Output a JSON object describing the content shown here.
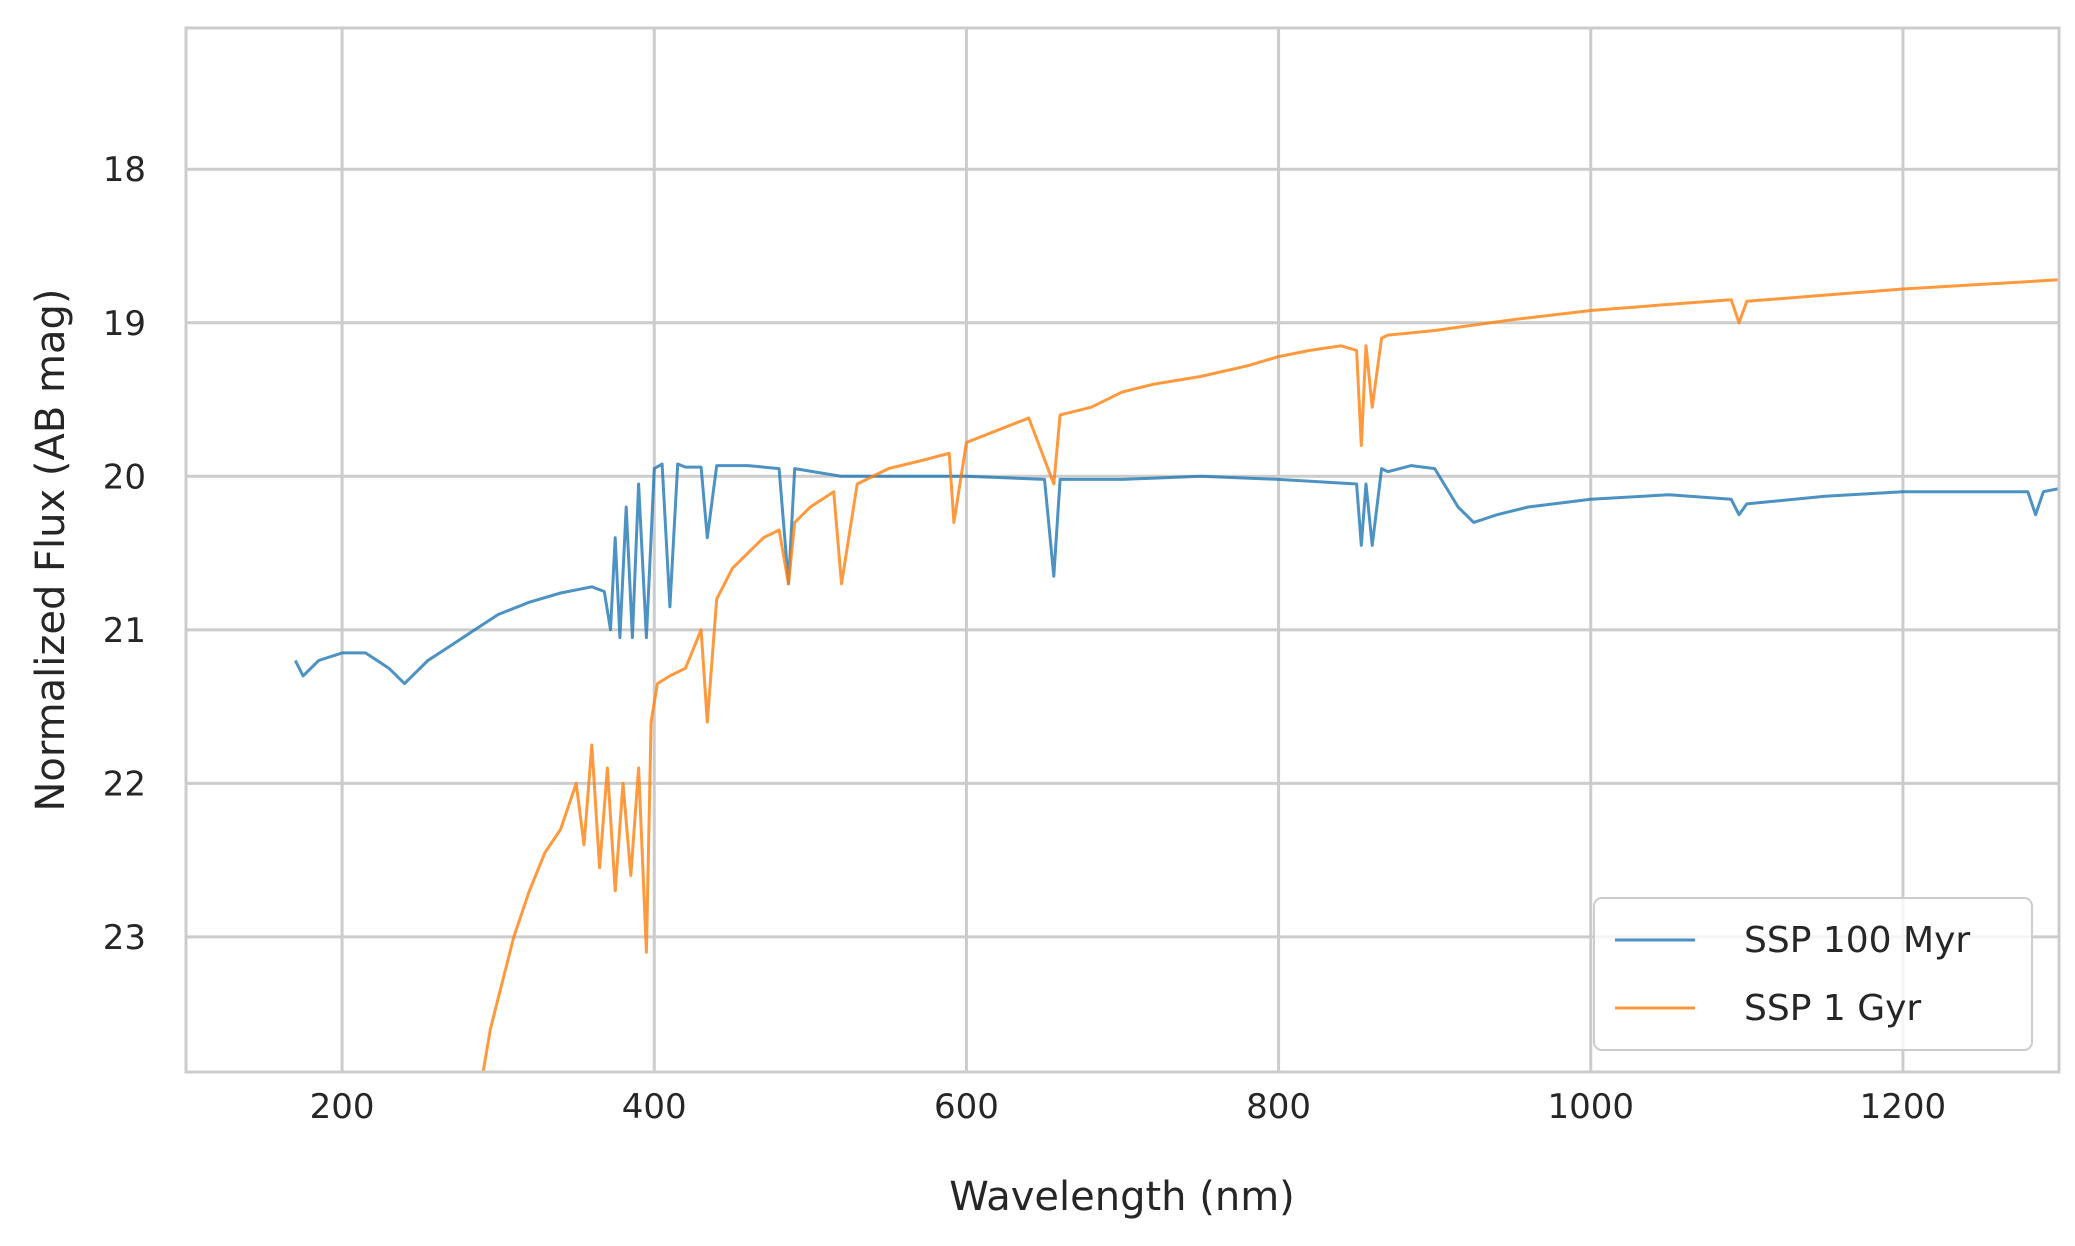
{
  "chart_data": {
    "type": "line",
    "title": "",
    "xlabel": "Wavelength (nm)",
    "ylabel": "Normalized Flux (AB mag)",
    "xlim": [
      100,
      1300
    ],
    "ylim": [
      23.88,
      17.08
    ],
    "y_inverted": true,
    "xticks": [
      200,
      400,
      600,
      800,
      1000,
      1200
    ],
    "yticks": [
      18,
      19,
      20,
      21,
      22,
      23
    ],
    "grid": true,
    "legend_position": "lower-right",
    "series": [
      {
        "name": "SSP 100 Myr",
        "color": "#1f77b4",
        "x": [
          170,
          175,
          185,
          200,
          215,
          230,
          240,
          255,
          270,
          285,
          300,
          320,
          340,
          360,
          368,
          372,
          375,
          378,
          382,
          386,
          390,
          395,
          400,
          405,
          410,
          415,
          420,
          430,
          434,
          440,
          460,
          480,
          486,
          490,
          520,
          550,
          600,
          650,
          656,
          660,
          700,
          750,
          800,
          850,
          853,
          856,
          860,
          866,
          870,
          885,
          900,
          915,
          925,
          940,
          960,
          1000,
          1050,
          1090,
          1095,
          1100,
          1150,
          1200,
          1250,
          1280,
          1285,
          1290,
          1300
        ],
        "y": [
          21.2,
          21.3,
          21.2,
          21.15,
          21.15,
          21.25,
          21.35,
          21.2,
          21.1,
          21.0,
          20.9,
          20.82,
          20.76,
          20.72,
          20.75,
          21.0,
          20.4,
          21.05,
          20.2,
          21.05,
          20.05,
          21.05,
          19.95,
          19.92,
          20.85,
          19.92,
          19.94,
          19.94,
          20.4,
          19.93,
          19.93,
          19.95,
          20.7,
          19.95,
          20.0,
          20.0,
          20.0,
          20.02,
          20.65,
          20.02,
          20.02,
          20.0,
          20.02,
          20.05,
          20.45,
          20.05,
          20.45,
          19.95,
          19.97,
          19.93,
          19.95,
          20.2,
          20.3,
          20.25,
          20.2,
          20.15,
          20.12,
          20.15,
          20.25,
          20.18,
          20.13,
          20.1,
          20.1,
          20.1,
          20.25,
          20.1,
          20.08
        ]
      },
      {
        "name": "SSP 1 Gyr",
        "color": "#ff7f0e",
        "x": [
          290,
          295,
          300,
          305,
          310,
          320,
          330,
          340,
          350,
          355,
          360,
          365,
          370,
          375,
          380,
          385,
          390,
          395,
          398,
          402,
          410,
          420,
          430,
          434,
          440,
          450,
          460,
          470,
          480,
          486,
          490,
          500,
          515,
          520,
          530,
          550,
          570,
          589,
          592,
          600,
          620,
          640,
          656,
          660,
          680,
          700,
          720,
          750,
          780,
          800,
          820,
          840,
          850,
          853,
          856,
          860,
          866,
          870,
          900,
          950,
          1000,
          1050,
          1090,
          1095,
          1100,
          1150,
          1200,
          1250,
          1300
        ],
        "y": [
          23.9,
          23.6,
          23.4,
          23.2,
          23.0,
          22.7,
          22.45,
          22.3,
          22.0,
          22.4,
          21.75,
          22.55,
          21.9,
          22.7,
          22.0,
          22.6,
          21.9,
          23.1,
          21.6,
          21.35,
          21.3,
          21.25,
          21.0,
          21.6,
          20.8,
          20.6,
          20.5,
          20.4,
          20.35,
          20.7,
          20.3,
          20.2,
          20.1,
          20.7,
          20.05,
          19.95,
          19.9,
          19.85,
          20.3,
          19.78,
          19.7,
          19.62,
          20.05,
          19.6,
          19.55,
          19.45,
          19.4,
          19.35,
          19.28,
          19.22,
          19.18,
          19.15,
          19.18,
          19.8,
          19.15,
          19.55,
          19.1,
          19.08,
          19.05,
          18.98,
          18.92,
          18.88,
          18.85,
          19.0,
          18.86,
          18.82,
          18.78,
          18.75,
          18.72
        ]
      }
    ]
  }
}
